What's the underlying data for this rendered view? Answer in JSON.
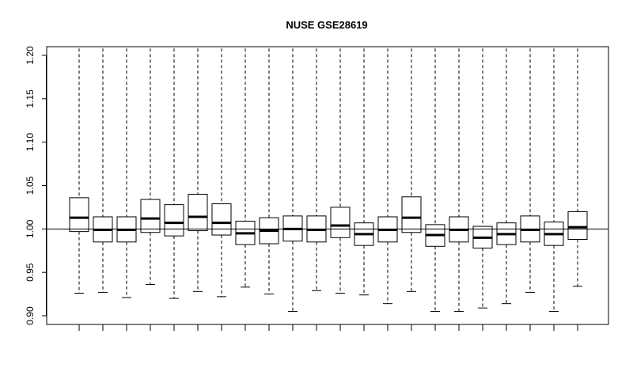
{
  "chart_data": {
    "type": "boxplot",
    "title": "NUSE GSE28619",
    "xlabel": "",
    "ylabel": "",
    "ylim": [
      0.89,
      1.21
    ],
    "yticks": [
      0.9,
      0.95,
      1.0,
      1.05,
      1.1,
      1.15,
      1.2
    ],
    "ytick_labels": [
      "0.90",
      "0.95",
      "1.00",
      "1.05",
      "1.10",
      "1.15",
      "1.20"
    ],
    "reference_line": 1.0,
    "grid": false,
    "legend": "none",
    "color": "#000000",
    "boxes": [
      {
        "whisker_low": 0.926,
        "q1": 0.997,
        "median": 1.013,
        "q3": 1.036,
        "whisker_high": 1.208
      },
      {
        "whisker_low": 0.927,
        "q1": 0.985,
        "median": 0.999,
        "q3": 1.014,
        "whisker_high": 1.208
      },
      {
        "whisker_low": 0.921,
        "q1": 0.985,
        "median": 0.999,
        "q3": 1.014,
        "whisker_high": 1.208
      },
      {
        "whisker_low": 0.936,
        "q1": 0.996,
        "median": 1.012,
        "q3": 1.034,
        "whisker_high": 1.208
      },
      {
        "whisker_low": 0.92,
        "q1": 0.992,
        "median": 1.007,
        "q3": 1.028,
        "whisker_high": 1.208
      },
      {
        "whisker_low": 0.928,
        "q1": 0.998,
        "median": 1.014,
        "q3": 1.04,
        "whisker_high": 1.208
      },
      {
        "whisker_low": 0.922,
        "q1": 0.993,
        "median": 1.007,
        "q3": 1.029,
        "whisker_high": 1.208
      },
      {
        "whisker_low": 0.933,
        "q1": 0.982,
        "median": 0.995,
        "q3": 1.009,
        "whisker_high": 1.208
      },
      {
        "whisker_low": 0.925,
        "q1": 0.983,
        "median": 0.998,
        "q3": 1.013,
        "whisker_high": 1.208
      },
      {
        "whisker_low": 0.905,
        "q1": 0.986,
        "median": 1.0,
        "q3": 1.015,
        "whisker_high": 1.208
      },
      {
        "whisker_low": 0.929,
        "q1": 0.985,
        "median": 0.999,
        "q3": 1.015,
        "whisker_high": 1.208
      },
      {
        "whisker_low": 0.926,
        "q1": 0.99,
        "median": 1.004,
        "q3": 1.025,
        "whisker_high": 1.208
      },
      {
        "whisker_low": 0.924,
        "q1": 0.981,
        "median": 0.994,
        "q3": 1.007,
        "whisker_high": 1.208
      },
      {
        "whisker_low": 0.914,
        "q1": 0.985,
        "median": 0.999,
        "q3": 1.014,
        "whisker_high": 1.208
      },
      {
        "whisker_low": 0.928,
        "q1": 0.996,
        "median": 1.013,
        "q3": 1.037,
        "whisker_high": 1.208
      },
      {
        "whisker_low": 0.905,
        "q1": 0.98,
        "median": 0.993,
        "q3": 1.005,
        "whisker_high": 1.208
      },
      {
        "whisker_low": 0.905,
        "q1": 0.985,
        "median": 0.999,
        "q3": 1.014,
        "whisker_high": 1.208
      },
      {
        "whisker_low": 0.909,
        "q1": 0.978,
        "median": 0.99,
        "q3": 1.003,
        "whisker_high": 1.208
      },
      {
        "whisker_low": 0.914,
        "q1": 0.982,
        "median": 0.994,
        "q3": 1.007,
        "whisker_high": 1.208
      },
      {
        "whisker_low": 0.927,
        "q1": 0.985,
        "median": 0.999,
        "q3": 1.015,
        "whisker_high": 1.208
      },
      {
        "whisker_low": 0.905,
        "q1": 0.981,
        "median": 0.994,
        "q3": 1.008,
        "whisker_high": 1.208
      },
      {
        "whisker_low": 0.934,
        "q1": 0.988,
        "median": 1.002,
        "q3": 1.02,
        "whisker_high": 1.208
      }
    ]
  }
}
